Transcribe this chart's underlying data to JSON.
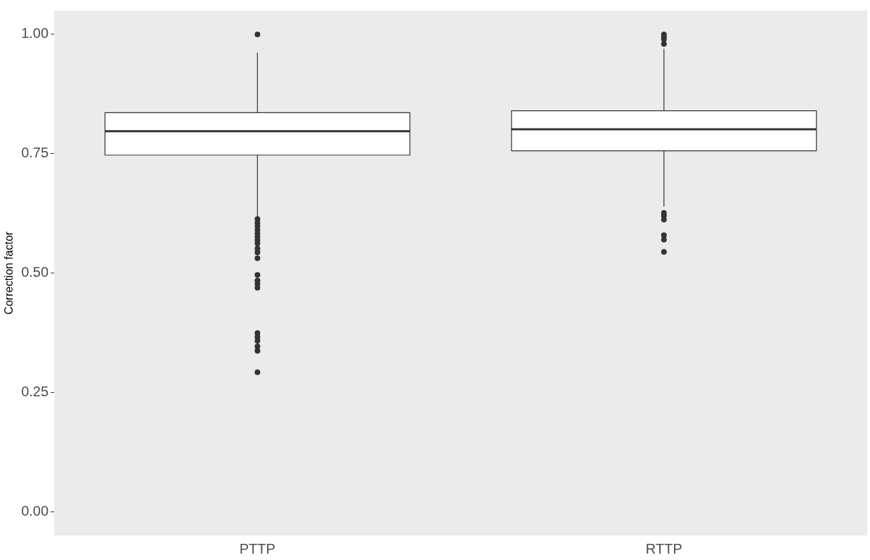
{
  "chart_data": {
    "type": "box",
    "ylabel": "Correction factor",
    "categories": [
      "PTTP",
      "RTTP"
    ],
    "boxes": [
      {
        "low": 0.617,
        "q1": 0.747,
        "median": 0.797,
        "q3": 0.836,
        "high": 0.962,
        "outliers": [
          1.0,
          0.613,
          0.605,
          0.598,
          0.59,
          0.583,
          0.576,
          0.569,
          0.562,
          0.551,
          0.543,
          0.531,
          0.496,
          0.484,
          0.477,
          0.469,
          0.374,
          0.366,
          0.358,
          0.346,
          0.337,
          0.292
        ]
      },
      {
        "low": 0.639,
        "q1": 0.756,
        "median": 0.801,
        "q3": 0.84,
        "high": 0.97,
        "outliers": [
          1.0,
          0.995,
          0.99,
          0.98,
          0.626,
          0.62,
          0.612,
          0.579,
          0.57,
          0.544
        ]
      }
    ],
    "ylim": [
      -0.05,
      1.05
    ],
    "yticks": [
      {
        "value": 0,
        "label": "0.00"
      },
      {
        "value": 0.25,
        "label": "0.25"
      },
      {
        "value": 0.5,
        "label": "0.50"
      },
      {
        "value": 0.75,
        "label": "0.75"
      },
      {
        "value": 1,
        "label": "1.00"
      }
    ],
    "grid": false,
    "legend": false
  }
}
